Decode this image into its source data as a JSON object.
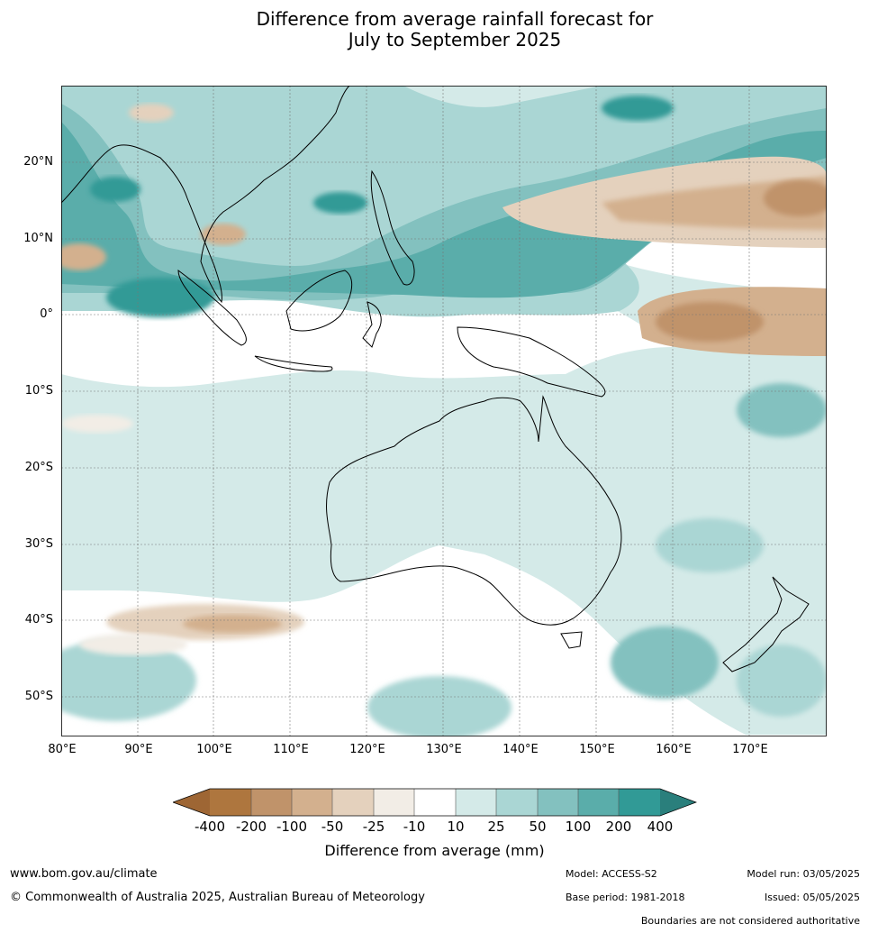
{
  "title": {
    "line1": "Difference from average rainfall forecast for",
    "line2": "July to September 2025"
  },
  "map": {
    "lat_labels": [
      "20°N",
      "10°N",
      "0°",
      "10°S",
      "20°S",
      "30°S",
      "40°S",
      "50°S"
    ],
    "lon_labels": [
      "80°E",
      "90°E",
      "100°E",
      "110°E",
      "120°E",
      "130°E",
      "140°E",
      "150°E",
      "160°E",
      "170°E"
    ]
  },
  "legend": {
    "title": "Difference from average (mm)",
    "ticks": [
      "-400",
      "-200",
      "-100",
      "-50",
      "-25",
      "-10",
      "10",
      "25",
      "50",
      "100",
      "200",
      "400"
    ],
    "colors": {
      "below_400": "#9e6634",
      "dry_200_400": "#ae763e",
      "dry_100_200": "#c0936a",
      "dry_50_100": "#d3b08e",
      "dry_25_50": "#e4d1bd",
      "dry_10_25": "#f2ede6",
      "neutral": "#ffffff",
      "wet_10_25": "#d4eae8",
      "wet_25_50": "#aad6d4",
      "wet_50_100": "#83c1bf",
      "wet_100_200": "#5aadaa",
      "wet_200_400": "#319a96",
      "above_400": "#2a7f7c"
    }
  },
  "footer": {
    "website": "www.bom.gov.au/climate",
    "copyright": "© Commonwealth of Australia 2025, Australian Bureau of Meteorology",
    "model": "Model: ACCESS-S2",
    "base_period": "Base period: 1981-2018",
    "model_run": "Model run: 03/05/2025",
    "issued": "Issued: 05/05/2025",
    "disclaimer": "Boundaries are not considered authoritative"
  }
}
